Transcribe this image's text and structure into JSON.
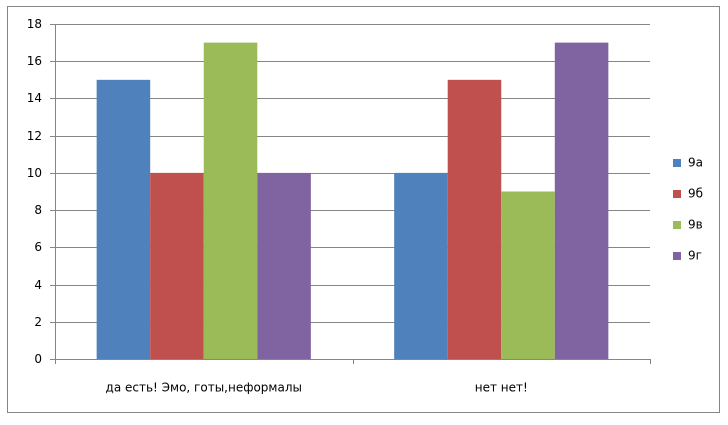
{
  "chart_data": {
    "type": "bar",
    "categories": [
      "да есть! Эмо, готы,неформалы",
      "нет нет!"
    ],
    "series": [
      {
        "name": "9а",
        "color": "#4f81bd",
        "values": [
          15,
          10
        ]
      },
      {
        "name": "9б",
        "color": "#c0504d",
        "values": [
          10,
          15
        ]
      },
      {
        "name": "9в",
        "color": "#9bbb59",
        "values": [
          17,
          9
        ]
      },
      {
        "name": "9г",
        "color": "#8064a2",
        "values": [
          10,
          17
        ]
      }
    ],
    "ylim": [
      0,
      18
    ],
    "yticks": [
      0,
      2,
      4,
      6,
      8,
      10,
      12,
      14,
      16,
      18
    ],
    "grid": true,
    "legend": "right"
  }
}
